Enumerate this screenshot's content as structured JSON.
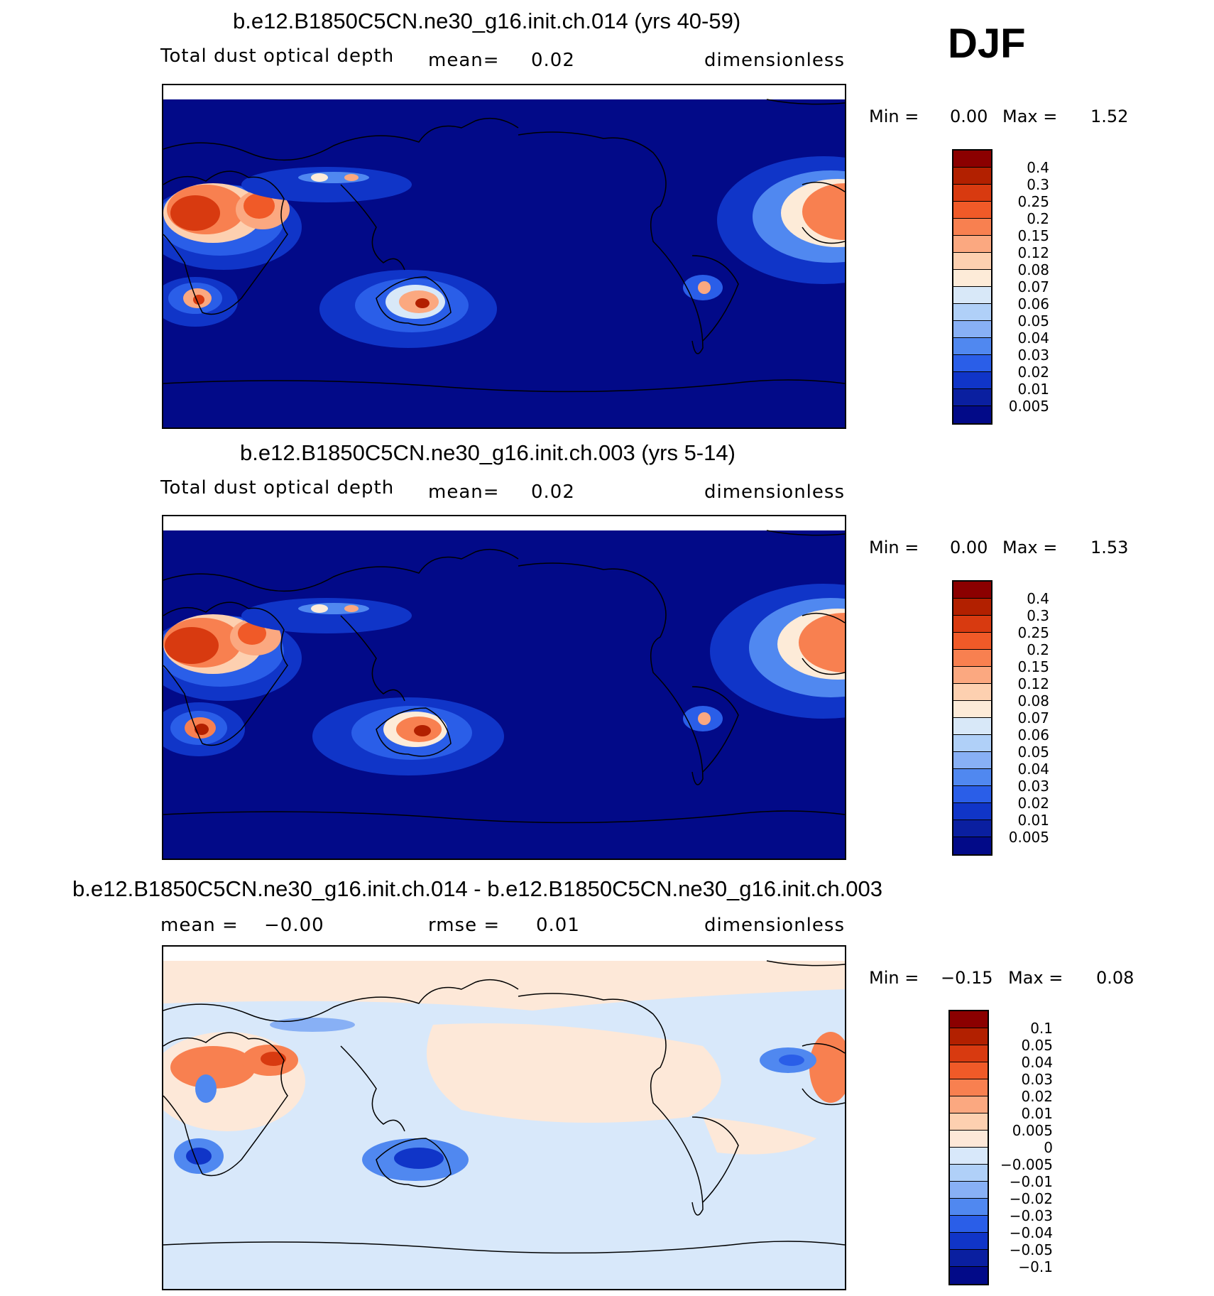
{
  "season": "DJF",
  "panels": [
    {
      "title": "b.e12.B1850C5CN.ne30_g16.init.ch.014 (yrs 40-59)",
      "variable": "Total dust optical depth",
      "mean_label": "mean=",
      "mean_value": "0.02",
      "units": "dimensionless",
      "min_label": "Min =",
      "min_value": "0.00",
      "max_label": "Max =",
      "max_value": "1.52",
      "colorbar_labels": [
        "0.4",
        "0.3",
        "0.25",
        "0.2",
        "0.15",
        "0.12",
        "0.08",
        "0.07",
        "0.06",
        "0.05",
        "0.04",
        "0.03",
        "0.02",
        "0.01",
        "0.005"
      ]
    },
    {
      "title": "b.e12.B1850C5CN.ne30_g16.init.ch.003 (yrs 5-14)",
      "variable": "Total dust optical depth",
      "mean_label": "mean=",
      "mean_value": "0.02",
      "units": "dimensionless",
      "min_label": "Min =",
      "min_value": "0.00",
      "max_label": "Max =",
      "max_value": "1.53",
      "colorbar_labels": [
        "0.4",
        "0.3",
        "0.25",
        "0.2",
        "0.15",
        "0.12",
        "0.08",
        "0.07",
        "0.06",
        "0.05",
        "0.04",
        "0.03",
        "0.02",
        "0.01",
        "0.005"
      ]
    },
    {
      "title": "b.e12.B1850C5CN.ne30_g16.init.ch.014 - b.e12.B1850C5CN.ne30_g16.init.ch.003",
      "mean_label": "mean =",
      "mean_value": "−0.00",
      "rmse_label": "rmse =",
      "rmse_value": "0.01",
      "units": "dimensionless",
      "min_label": "Min =",
      "min_value": "−0.15",
      "max_label": "Max =",
      "max_value": "0.08",
      "colorbar_labels": [
        "0.1",
        "0.05",
        "0.04",
        "0.03",
        "0.02",
        "0.01",
        "0.005",
        "0",
        "−0.005",
        "−0.01",
        "−0.02",
        "−0.03",
        "−0.04",
        "−0.05",
        "−0.1"
      ]
    }
  ],
  "colors": {
    "abs_scale": [
      "#8b0000",
      "#b22000",
      "#d83a10",
      "#f05a28",
      "#f88050",
      "#fba880",
      "#fdd0b0",
      "#fdebd8",
      "#d8e8f8",
      "#b0d0f8",
      "#88b0f5",
      "#5088f0",
      "#2a5ee8",
      "#1035c8",
      "#0a1fa0",
      "#020a88"
    ],
    "diff_scale": [
      "#8b0000",
      "#b22000",
      "#d83a10",
      "#f05a28",
      "#f88050",
      "#fba880",
      "#fdd0b0",
      "#fde8d8",
      "#d8e8fa",
      "#b0d0f8",
      "#88b0f5",
      "#5088f0",
      "#2a5ee8",
      "#1035c8",
      "#0a1fa0",
      "#020a88"
    ],
    "map_background_abs": "#020a88",
    "map_background_diff": "#d8e8fa"
  }
}
